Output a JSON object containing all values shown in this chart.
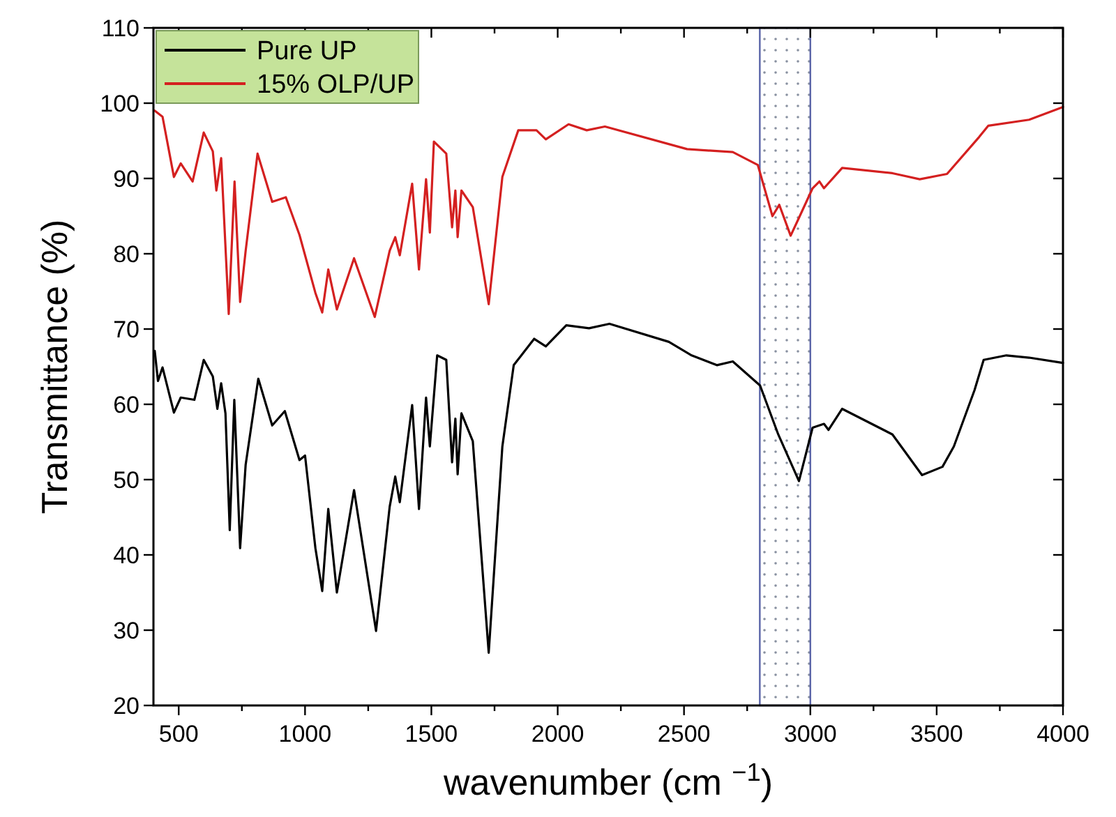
{
  "chart_data": {
    "type": "line",
    "xlabel": "wavenumber (cm $^{−1}$)",
    "ylabel": "Transmittance (%)",
    "xlim": [
      400,
      4000
    ],
    "xticks": [
      500,
      {
        "value": 750,
        "label": null
      },
      1000,
      {
        "value": 1250,
        "label": null
      },
      1500,
      {
        "value": 1750,
        "label": null
      },
      2000,
      {
        "value": 2250,
        "label": null
      },
      2500,
      {
        "value": 2750,
        "label": null
      },
      3000,
      {
        "value": 3250,
        "label": null
      },
      3500,
      {
        "value": 3750,
        "label": null
      },
      4000
    ],
    "ylim": [
      20,
      110
    ],
    "yticks": [
      20,
      30,
      40,
      50,
      60,
      70,
      80,
      90,
      100,
      110
    ],
    "legend": "top left",
    "grid": false,
    "marker": "none",
    "line_style": "solid",
    "bands": [
      {
        "axis": "x",
        "from": 2800,
        "to": 3000,
        "color": "#5a64a8"
      }
    ],
    "series": [
      {
        "name": "Pure UP",
        "color": "#000000",
        "x": [
          405,
          418,
          436,
          481,
          508,
          562,
          599,
          635,
          653,
          668,
          685,
          702,
          720,
          743,
          765,
          815,
          870,
          920,
          978,
          1000,
          1041,
          1068,
          1092,
          1126,
          1194,
          1281,
          1335,
          1357,
          1375,
          1424,
          1451,
          1479,
          1494,
          1523,
          1559,
          1582,
          1595,
          1604,
          1619,
          1664,
          1727,
          1781,
          1826,
          1907,
          1953,
          2034,
          2124,
          2205,
          2440,
          2530,
          2630,
          2693,
          2801,
          2873,
          2955,
          3009,
          3054,
          3072,
          3126,
          3325,
          3442,
          3523,
          3568,
          3650,
          3686,
          3776,
          3866,
          4000
        ],
        "values": [
          67.1,
          63.1,
          64.9,
          58.9,
          60.9,
          60.6,
          65.9,
          63.7,
          59.4,
          62.8,
          58.8,
          43.3,
          60.6,
          40.9,
          52,
          63.4,
          57.2,
          59.1,
          52.6,
          53.2,
          40.9,
          35.2,
          46.1,
          35,
          48.6,
          29.9,
          46.4,
          50.4,
          47,
          59.9,
          46.1,
          60.9,
          54.4,
          66.5,
          65.9,
          52.3,
          58.1,
          50.7,
          58.8,
          55.1,
          27,
          54.4,
          65.2,
          68.7,
          67.7,
          70.5,
          70.1,
          70.7,
          68.3,
          66.5,
          65.2,
          65.7,
          62.5,
          56,
          49.8,
          56.9,
          57.4,
          56.6,
          59.4,
          56,
          50.6,
          51.7,
          54.4,
          61.9,
          65.9,
          66.5,
          66.2,
          65.5
        ]
      },
      {
        "name": "15% OLP/UP",
        "color": "#d42020",
        "x": [
          405,
          436,
          481,
          508,
          555,
          599,
          635,
          649,
          668,
          698,
          721,
          743,
          765,
          812,
          870,
          924,
          978,
          1041,
          1068,
          1092,
          1126,
          1194,
          1276,
          1335,
          1357,
          1375,
          1424,
          1451,
          1479,
          1494,
          1510,
          1559,
          1582,
          1595,
          1604,
          1619,
          1664,
          1727,
          1781,
          1844,
          1916,
          1953,
          2043,
          2115,
          2187,
          2512,
          2693,
          2792,
          2850,
          2877,
          2922,
          2954,
          3009,
          3036,
          3054,
          3126,
          3325,
          3433,
          3541,
          3668,
          3704,
          3866,
          4000
        ],
        "values": [
          99,
          98.2,
          90.2,
          92,
          89.6,
          96.1,
          93.6,
          88.4,
          92.7,
          72,
          89.6,
          73.6,
          80.4,
          93.3,
          86.9,
          87.5,
          82.5,
          74.8,
          72.2,
          77.9,
          72.6,
          79.4,
          71.6,
          80.4,
          82.2,
          79.8,
          89.3,
          77.9,
          89.9,
          82.8,
          94.9,
          93.3,
          83.5,
          88.4,
          82.2,
          88.4,
          86.2,
          73.3,
          90.2,
          96.4,
          96.4,
          95.2,
          97.2,
          96.4,
          96.9,
          93.9,
          93.5,
          91.8,
          85,
          86.5,
          82.4,
          84.7,
          88.7,
          89.6,
          88.7,
          91.4,
          90.7,
          89.9,
          90.6,
          95.5,
          97,
          97.8,
          99.5
        ]
      }
    ]
  }
}
